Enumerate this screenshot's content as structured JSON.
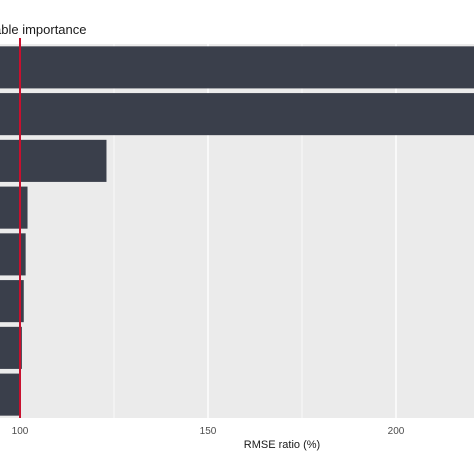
{
  "chart_data": {
    "type": "bar",
    "orientation": "horizontal",
    "title": "able importance",
    "xlabel": "RMSE ratio (%)",
    "ylabel": "",
    "xticks": [
      100,
      150,
      200
    ],
    "xlim": [
      99,
      220
    ],
    "grid": true,
    "reference_line": {
      "x": 100,
      "color": "#c8102e"
    },
    "bar_color": "#3a3f4b",
    "panel_color": "#ebebeb",
    "categories": [
      "",
      "",
      "",
      "",
      "",
      "",
      "",
      ""
    ],
    "values": [
      225,
      225,
      123,
      102,
      101.5,
      101,
      100.5,
      100
    ]
  }
}
